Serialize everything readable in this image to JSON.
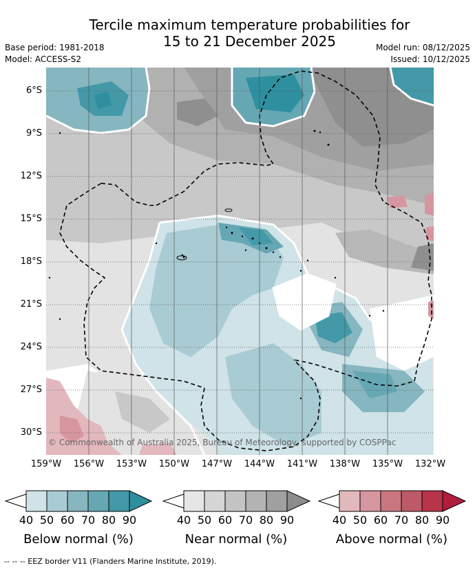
{
  "title": {
    "line1": "Tercile maximum temperature probabilities for",
    "line2": "15 to 21 December 2025"
  },
  "meta": {
    "base_period": "Base period: 1981-2018",
    "model": "Model: ACCESS-S2",
    "model_run": "Model run: 08/12/2025",
    "issued": "Issued: 10/12/2025"
  },
  "map": {
    "lat_labels": [
      "6°S",
      "9°S",
      "12°S",
      "15°S",
      "18°S",
      "21°S",
      "24°S",
      "27°S",
      "30°S"
    ],
    "lon_labels": [
      "159°W",
      "156°W",
      "153°W",
      "150°W",
      "147°W",
      "144°W",
      "141°W",
      "138°W",
      "135°W",
      "132°W"
    ],
    "copyright": "© Commonwealth of Australia 2025, Bureau of Meteorology, supported by COSPPac"
  },
  "colorbars": [
    {
      "title": "Below normal (%)",
      "ticks": [
        "40",
        "50",
        "60",
        "70",
        "80",
        "90"
      ],
      "colors": [
        "#cfe3e8",
        "#a9cbd3",
        "#86b6c0",
        "#66a7b4",
        "#4399a8",
        "#2e8f9f"
      ]
    },
    {
      "title": "Near normal (%)",
      "ticks": [
        "40",
        "50",
        "60",
        "70",
        "80",
        "90"
      ],
      "colors": [
        "#e6e6e6",
        "#d6d6d6",
        "#c4c4c4",
        "#b3b3b3",
        "#a0a0a0",
        "#8c8c8c"
      ]
    },
    {
      "title": "Above normal (%)",
      "ticks": [
        "40",
        "50",
        "60",
        "70",
        "80",
        "90"
      ],
      "colors": [
        "#e3b8bd",
        "#d6969f",
        "#c97680",
        "#bd5a67",
        "#b83549",
        "#b01e3c"
      ]
    }
  ],
  "footnote": "--  --  -- EEZ border V11 (Flanders Marine Institute, 2019)."
}
